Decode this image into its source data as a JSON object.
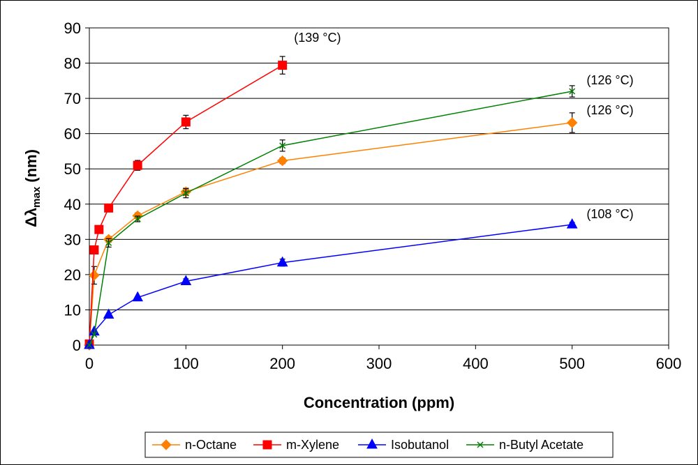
{
  "chart_data": {
    "type": "line",
    "title": "",
    "xlabel": "Concentration (ppm)",
    "ylabel": {
      "prefix": "Δλ",
      "sub": "max",
      "suffix": " (nm)"
    },
    "xlim": [
      0,
      600
    ],
    "ylim": [
      0,
      90
    ],
    "xticks": [
      0,
      100,
      200,
      300,
      400,
      500,
      600
    ],
    "yticks": [
      0,
      10,
      20,
      30,
      40,
      50,
      60,
      70,
      80,
      90
    ],
    "grid": "horizontal",
    "legend_position": "bottom",
    "series": [
      {
        "name": "n-Octane",
        "color": "#ff8000",
        "marker": "diamond",
        "points": [
          {
            "x": 0,
            "y": 0,
            "err": 0
          },
          {
            "x": 5,
            "y": 19.8,
            "err": 2.5
          },
          {
            "x": 20,
            "y": 30,
            "err": 0.8
          },
          {
            "x": 50,
            "y": 36.7,
            "err": 0.8
          },
          {
            "x": 100,
            "y": 43.5,
            "err": 1
          },
          {
            "x": 200,
            "y": 52.3,
            "err": 0.8
          },
          {
            "x": 500,
            "y": 63.1,
            "err": 2.8
          }
        ]
      },
      {
        "name": "m-Xylene",
        "color": "#ff0000",
        "marker": "square",
        "points": [
          {
            "x": 0,
            "y": 0.3,
            "err": 0
          },
          {
            "x": 5,
            "y": 27,
            "err": 0
          },
          {
            "x": 10,
            "y": 32.8,
            "err": 0
          },
          {
            "x": 20,
            "y": 38.9,
            "err": 0
          },
          {
            "x": 50,
            "y": 51,
            "err": 1.4
          },
          {
            "x": 100,
            "y": 63.3,
            "err": 1.9
          },
          {
            "x": 200,
            "y": 79.4,
            "err": 2.5
          }
        ]
      },
      {
        "name": "Isobutanol",
        "color": "#0000ff",
        "marker": "triangle",
        "points": [
          {
            "x": 0,
            "y": 0,
            "err": 0
          },
          {
            "x": 5,
            "y": 3.8,
            "err": 0
          },
          {
            "x": 20,
            "y": 8.6,
            "err": 0
          },
          {
            "x": 50,
            "y": 13.5,
            "err": 0
          },
          {
            "x": 100,
            "y": 18.1,
            "err": 0.7
          },
          {
            "x": 200,
            "y": 23.4,
            "err": 1
          },
          {
            "x": 500,
            "y": 34.2,
            "err": 0.6
          }
        ]
      },
      {
        "name": "n-Butyl Acetate",
        "color": "#008000",
        "marker": "x",
        "points": [
          {
            "x": 0,
            "y": 0,
            "err": 0
          },
          {
            "x": 5,
            "y": 3,
            "err": 0
          },
          {
            "x": 20,
            "y": 29,
            "err": 1.2
          },
          {
            "x": 50,
            "y": 35.8,
            "err": 0.8
          },
          {
            "x": 100,
            "y": 43.1,
            "err": 1.3
          },
          {
            "x": 200,
            "y": 56.6,
            "err": 1.6
          },
          {
            "x": 500,
            "y": 72,
            "err": 1.6
          }
        ]
      }
    ],
    "annotations": [
      {
        "text": "(139 °C)",
        "x": 212,
        "y": 86
      },
      {
        "text": "(126 °C)",
        "x": 515,
        "y": 74
      },
      {
        "text": "(126 °C)",
        "x": 515,
        "y": 65.5
      },
      {
        "text": "(108 °C)",
        "x": 515,
        "y": 36
      }
    ]
  }
}
